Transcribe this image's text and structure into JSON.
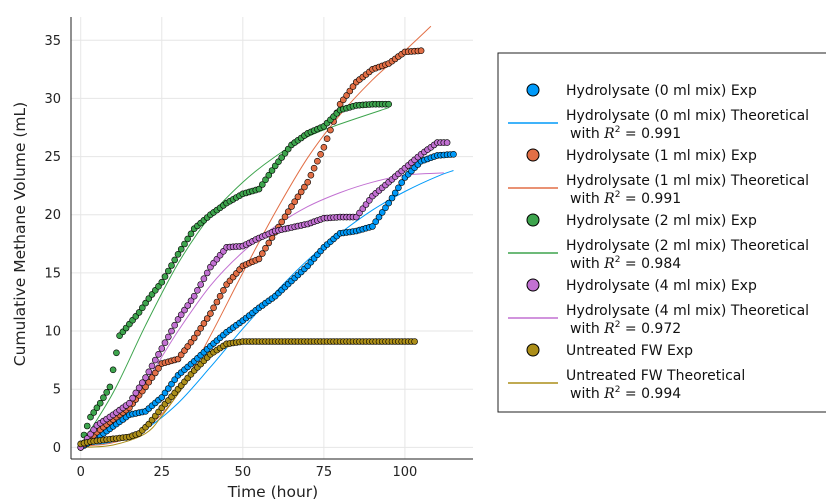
{
  "chart_data": {
    "type": "scatter",
    "title": "",
    "xlabel": "Time (hour)",
    "ylabel": "Cumulative Methane Volume (mL)",
    "xlim": [
      -3,
      121
    ],
    "ylim": [
      -1,
      37
    ],
    "xticks": [
      "0",
      "25",
      "50",
      "75",
      "100"
    ],
    "yticks": [
      "0",
      "5",
      "10",
      "15",
      "20",
      "25",
      "30",
      "35"
    ],
    "grid": true,
    "legend_position": "right",
    "series": [
      {
        "name": "Hydrolysate (0 ml mix) Exp",
        "kind": "points",
        "color": "#009af9",
        "x": [
          0,
          5,
          10,
          15,
          20,
          25,
          30,
          35,
          40,
          45,
          50,
          55,
          60,
          65,
          70,
          75,
          80,
          85,
          90,
          95,
          100,
          105,
          110,
          115
        ],
        "y": [
          0,
          0.8,
          1.8,
          2.8,
          3.1,
          4.3,
          6.2,
          7.4,
          8.7,
          9.9,
          10.9,
          12.0,
          13.0,
          14.3,
          15.6,
          17.2,
          18.4,
          18.6,
          19.0,
          21.0,
          23.2,
          24.6,
          25.1,
          25.2
        ]
      },
      {
        "name": "Hydrolysate (0 ml mix) Theoretical",
        "kind": "line",
        "color": "#009af9",
        "r2": "0.991",
        "x": [
          0,
          10,
          20,
          30,
          40,
          50,
          60,
          70,
          80,
          90,
          100,
          110,
          115
        ],
        "y": [
          0.1,
          0.5,
          1.6,
          3.8,
          6.9,
          10.2,
          13.3,
          16.1,
          18.4,
          20.4,
          22.0,
          23.3,
          23.8
        ]
      },
      {
        "name": "Hydrolysate (1 ml mix) Exp",
        "kind": "points",
        "color": "#e26f46",
        "x": [
          0,
          5,
          10,
          15,
          20,
          25,
          30,
          35,
          40,
          45,
          50,
          55,
          60,
          65,
          70,
          75,
          80,
          85,
          90,
          95,
          100,
          105
        ],
        "y": [
          0,
          1.3,
          2.4,
          3.4,
          5.2,
          7.2,
          7.6,
          9.4,
          11.5,
          14.0,
          15.6,
          16.2,
          18.5,
          20.7,
          22.8,
          25.8,
          29.5,
          31.4,
          32.5,
          33.0,
          34.0,
          34.1
        ]
      },
      {
        "name": "Hydrolysate (1 ml mix) Theoretical",
        "kind": "line",
        "color": "#e26f46",
        "r2": "0.991",
        "x": [
          0,
          10,
          20,
          30,
          40,
          50,
          60,
          70,
          80,
          90,
          100,
          108
        ],
        "y": [
          0.1,
          0.4,
          1.6,
          4.6,
          9.6,
          15.0,
          20.2,
          24.9,
          28.6,
          31.6,
          34.1,
          36.2
        ]
      },
      {
        "name": "Hydrolysate (2 ml mix) Exp",
        "kind": "points",
        "color": "#3da44d",
        "x": [
          0,
          3,
          6,
          9,
          12,
          15,
          18,
          21,
          25,
          30,
          35,
          40,
          45,
          50,
          55,
          60,
          65,
          70,
          75,
          80,
          85,
          90,
          95
        ],
        "y": [
          0.3,
          2.6,
          3.8,
          5.2,
          9.6,
          10.6,
          11.6,
          12.8,
          14.2,
          16.6,
          18.8,
          20.0,
          21.0,
          21.8,
          22.2,
          24.2,
          26.0,
          27.0,
          27.6,
          29.0,
          29.4,
          29.5,
          29.5
        ]
      },
      {
        "name": "Hydrolysate (2 ml mix) Theoretical",
        "kind": "line",
        "color": "#3da44d",
        "r2": "0.984",
        "x": [
          0,
          10,
          20,
          30,
          40,
          50,
          60,
          70,
          80,
          95
        ],
        "y": [
          0.2,
          4.7,
          10.5,
          15.8,
          19.9,
          22.8,
          25.0,
          26.7,
          27.8,
          29.2
        ]
      },
      {
        "name": "Hydrolysate (4 ml mix) Exp",
        "kind": "points",
        "color": "#c271d2",
        "x": [
          0,
          5,
          10,
          15,
          20,
          25,
          30,
          35,
          40,
          45,
          50,
          55,
          60,
          65,
          70,
          75,
          80,
          85,
          90,
          95,
          100,
          105,
          110,
          113
        ],
        "y": [
          0,
          1.9,
          2.8,
          3.8,
          6.0,
          8.5,
          11.0,
          13.0,
          15.5,
          17.2,
          17.3,
          18.0,
          18.6,
          18.9,
          19.2,
          19.7,
          19.8,
          19.8,
          21.6,
          22.8,
          24.0,
          25.2,
          26.2,
          26.2
        ]
      },
      {
        "name": "Hydrolysate (4 ml mix) Theoretical",
        "kind": "line",
        "color": "#c271d2",
        "r2": "0.972",
        "x": [
          0,
          10,
          20,
          30,
          40,
          50,
          60,
          70,
          80,
          90,
          100,
          112
        ],
        "y": [
          0.3,
          2.1,
          5.6,
          10.0,
          13.9,
          16.8,
          19.0,
          20.7,
          21.9,
          22.8,
          23.4,
          23.6
        ]
      },
      {
        "name": "Untreated FW Exp",
        "kind": "points",
        "color": "#ac8e18",
        "x": [
          0,
          3,
          6,
          9,
          12,
          15,
          18,
          21,
          25,
          30,
          35,
          40,
          45,
          50,
          55,
          60,
          65,
          70,
          75,
          80,
          85,
          90,
          95,
          100,
          103
        ],
        "y": [
          0.3,
          0.5,
          0.6,
          0.7,
          0.8,
          0.9,
          1.2,
          2.0,
          3.4,
          5.0,
          6.6,
          8.0,
          8.9,
          9.1,
          9.1,
          9.1,
          9.1,
          9.1,
          9.1,
          9.1,
          9.1,
          9.1,
          9.1,
          9.1,
          9.1
        ]
      },
      {
        "name": "Untreated FW Theoretical",
        "kind": "line",
        "color": "#ac8e18",
        "r2": "0.994",
        "x": [
          0,
          10,
          20,
          25,
          30,
          35,
          40,
          45,
          50,
          55,
          60,
          70,
          80,
          103
        ],
        "y": [
          0,
          0.2,
          1.2,
          2.7,
          4.6,
          6.4,
          7.8,
          8.6,
          8.95,
          9.05,
          9.1,
          9.1,
          9.1,
          9.1
        ]
      }
    ],
    "legend": [
      {
        "label": "Hydrolysate (0 ml mix) Exp",
        "kind": "marker",
        "color": "#009af9"
      },
      {
        "label": "Hydrolysate (0 ml mix) Theoretical",
        "line2": "with ",
        "r2": "0.991",
        "kind": "line",
        "color": "#009af9"
      },
      {
        "label": "Hydrolysate (1 ml mix) Exp",
        "kind": "marker",
        "color": "#e26f46"
      },
      {
        "label": "Hydrolysate (1 ml mix) Theoretical",
        "line2": "with ",
        "r2": "0.991",
        "kind": "line",
        "color": "#e26f46"
      },
      {
        "label": "Hydrolysate (2 ml mix) Exp",
        "kind": "marker",
        "color": "#3da44d"
      },
      {
        "label": "Hydrolysate (2 ml mix) Theoretical",
        "line2": "with ",
        "r2": "0.984",
        "kind": "line",
        "color": "#3da44d"
      },
      {
        "label": "Hydrolysate (4 ml mix) Exp",
        "kind": "marker",
        "color": "#c271d2"
      },
      {
        "label": "Hydrolysate (4 ml mix) Theoretical",
        "line2": "with ",
        "r2": "0.972",
        "kind": "line",
        "color": "#c271d2"
      },
      {
        "label": "Untreated FW Exp",
        "kind": "marker",
        "color": "#ac8e18"
      },
      {
        "label": "Untreated FW Theoretical",
        "line2": "with ",
        "r2": "0.994",
        "kind": "line",
        "color": "#ac8e18"
      }
    ]
  }
}
